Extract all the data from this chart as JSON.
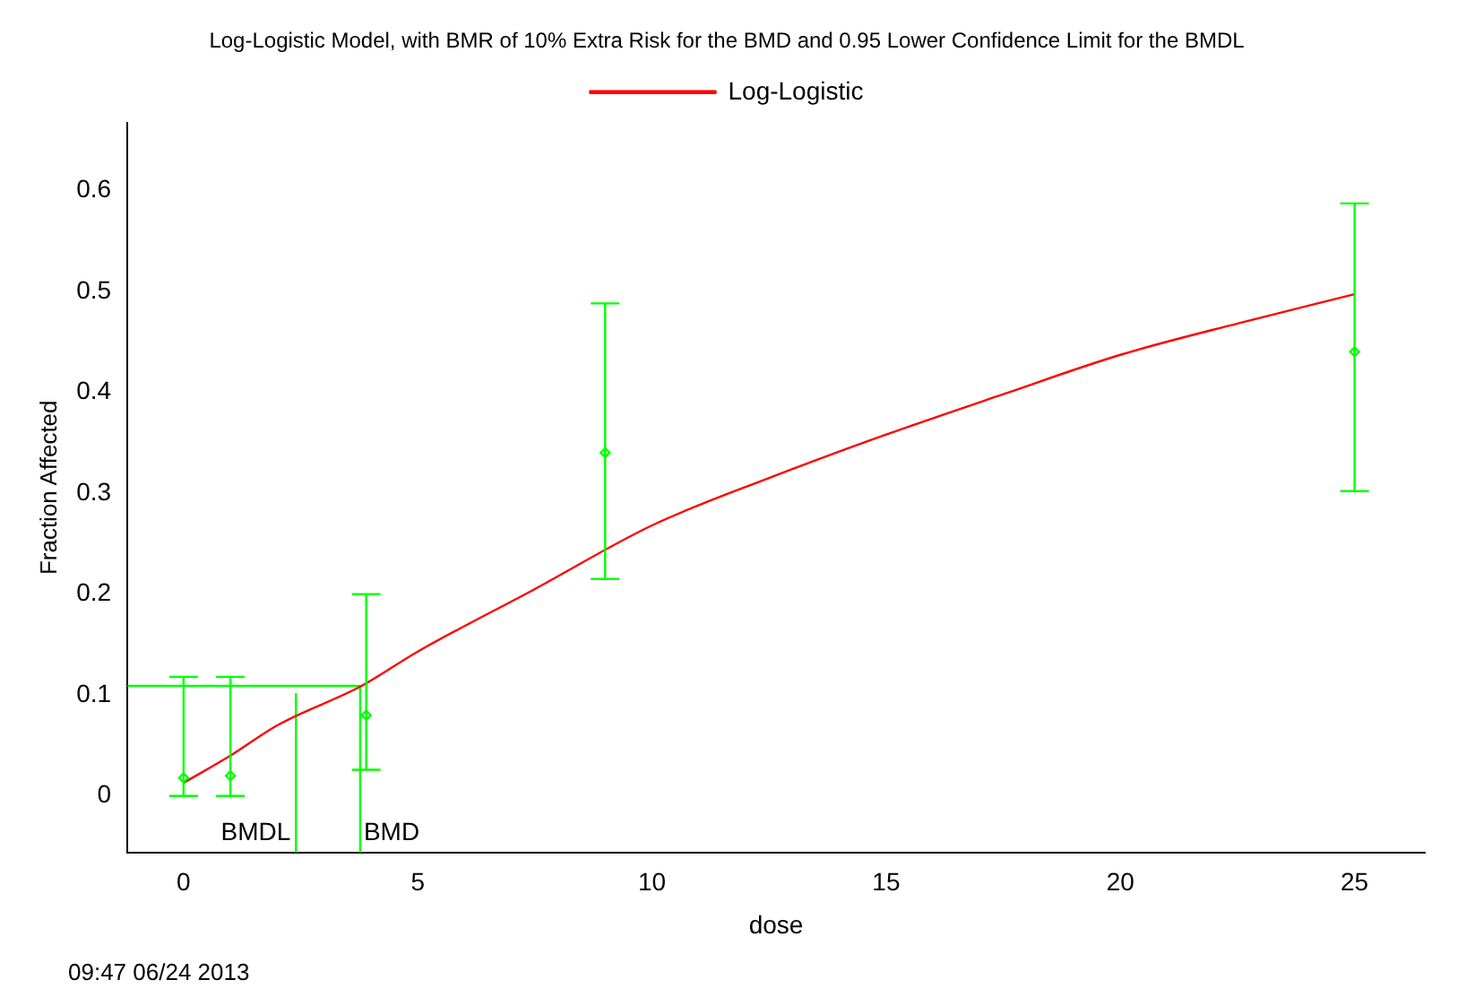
{
  "chart_data": {
    "type": "scatter",
    "title": "Log-Logistic Model, with BMR of 10% Extra Risk for the BMD and 0.95 Lower Confidence Limit for the BMDL",
    "xlabel": "dose",
    "ylabel": "Fraction Affected",
    "xlim": [
      -1.2,
      26.5
    ],
    "xticks": [
      0,
      5,
      10,
      15,
      20,
      25
    ],
    "ylim": [
      -0.056,
      0.667
    ],
    "yticks": [
      0,
      0.1,
      0.2,
      0.3,
      0.4,
      0.5,
      0.6
    ],
    "grid": false,
    "legend": "top",
    "series": [
      {
        "color": "#00ff00",
        "marker": "diamond",
        "x": [
          0,
          1,
          3.9,
          9,
          25
        ],
        "values": [
          0.018,
          0.02,
          0.08,
          0.34,
          0.44
        ],
        "errors": [
          [
            0,
            0.118
          ],
          [
            0,
            0.118
          ],
          [
            0.026,
            0.2
          ],
          [
            0.215,
            0.488
          ],
          [
            0.302,
            0.587
          ]
        ]
      },
      {
        "type": "line",
        "name": "Log-Logistic",
        "color": "#ff0000",
        "marker": "none",
        "x": [
          0,
          1,
          2,
          3.8,
          5,
          7.5,
          10,
          12.5,
          15,
          17.5,
          20,
          22.5,
          25
        ],
        "values": [
          0.013,
          0.04,
          0.07,
          0.109,
          0.143,
          0.205,
          0.268,
          0.315,
          0.358,
          0.398,
          0.437,
          0.468,
          0.497
        ]
      },
      {
        "type": "line",
        "color": "#00ff00",
        "marker": "none",
        "x": [
          -1.2,
          3.77,
          3.77
        ],
        "values": [
          0.109,
          0.109,
          -0.056
        ]
      },
      {
        "type": "line",
        "color": "#00ff00",
        "marker": "none",
        "x": [
          2.4,
          2.4
        ],
        "values": [
          0.101,
          -0.056
        ]
      }
    ],
    "annotations": [
      {
        "text": "BMDL",
        "x": 2.4,
        "y": -0.037
      },
      {
        "text": "BMD",
        "x": 3.77,
        "y": -0.037
      },
      "09:47 06/24 2013"
    ]
  }
}
